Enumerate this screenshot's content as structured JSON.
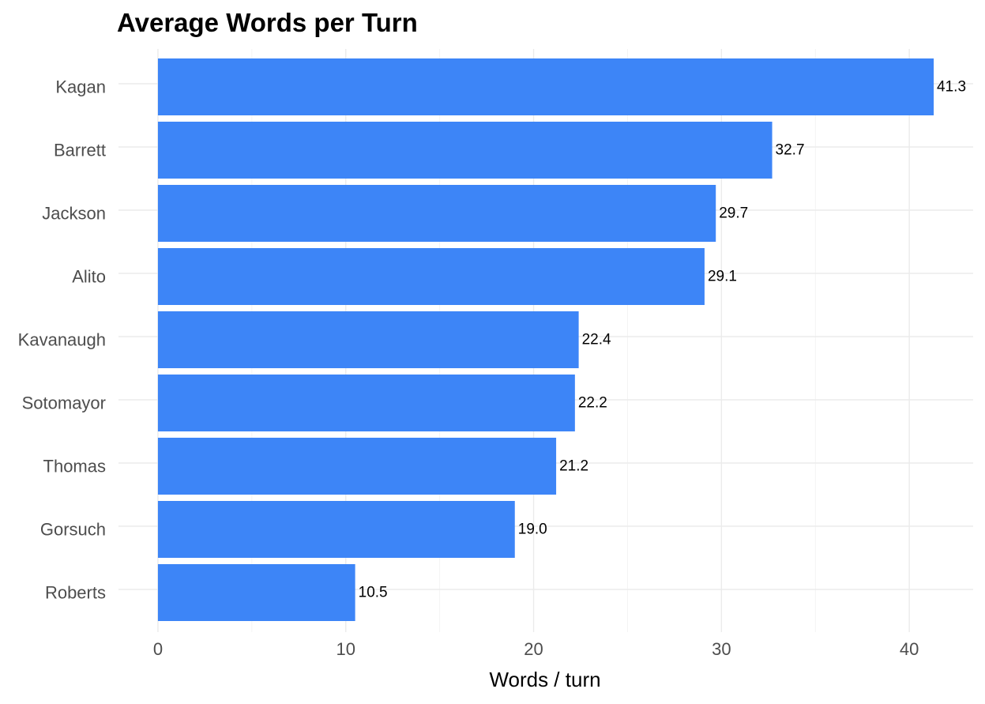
{
  "chart_data": {
    "type": "bar",
    "orientation": "horizontal",
    "title": "Average Words per Turn",
    "xlabel": "Words / turn",
    "ylabel": "",
    "categories": [
      "Kagan",
      "Barrett",
      "Jackson",
      "Alito",
      "Kavanaugh",
      "Sotomayor",
      "Thomas",
      "Gorsuch",
      "Roberts"
    ],
    "values": [
      41.3,
      32.7,
      29.7,
      29.1,
      22.4,
      22.2,
      21.2,
      19.0,
      10.5
    ],
    "value_labels": [
      "41.3",
      "32.7",
      "29.7",
      "29.1",
      "22.4",
      "22.2",
      "21.2",
      "19.0",
      "10.5"
    ],
    "x_ticks": [
      0,
      10,
      20,
      30,
      40
    ],
    "x_tick_labels": [
      "0",
      "10",
      "20",
      "30",
      "40"
    ],
    "xlim": [
      -2.1,
      43.4
    ],
    "grid": true,
    "legend": "none",
    "bar_color": "#3d85f7"
  }
}
